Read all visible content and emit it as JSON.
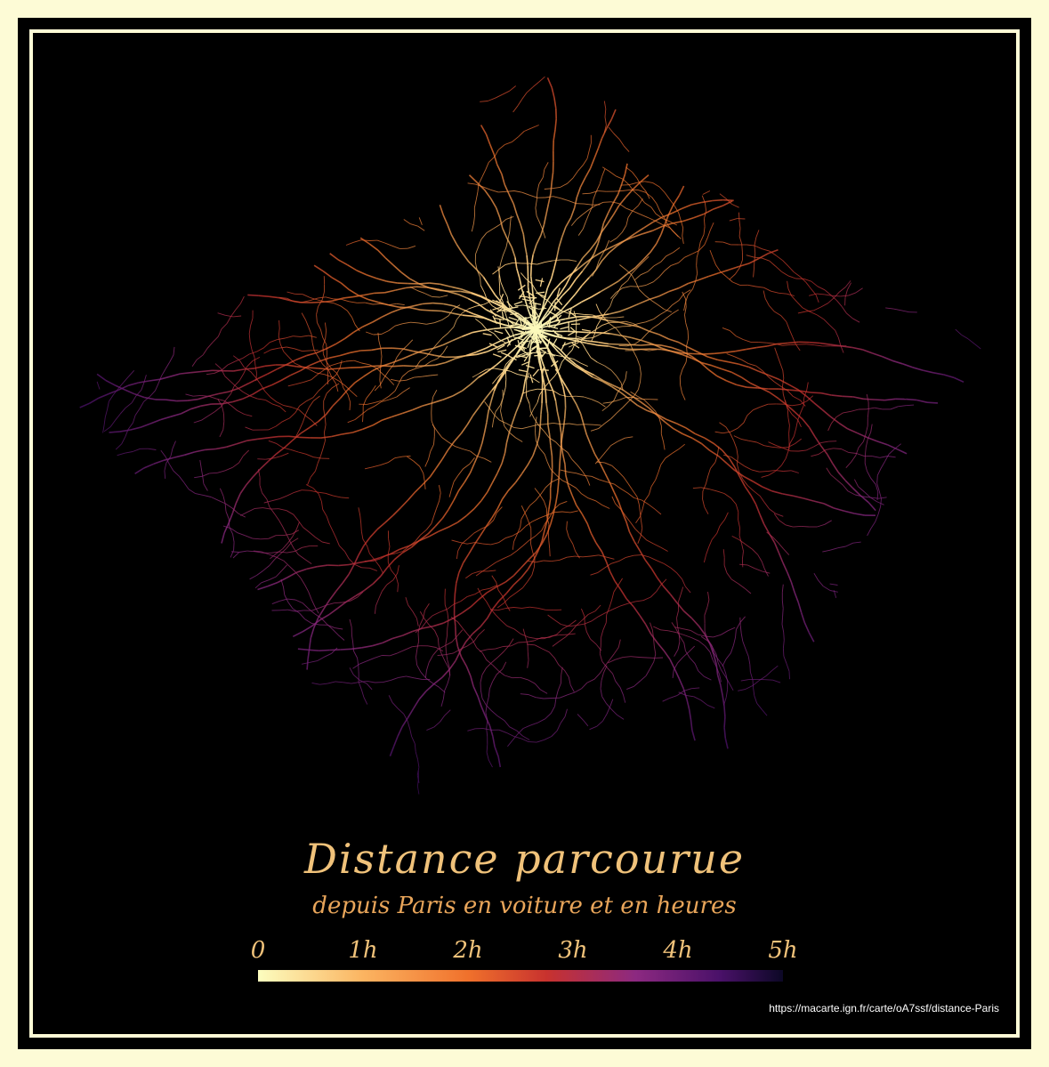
{
  "title": "Distance parcourue",
  "subtitle": "depuis Paris en voiture et en heures",
  "legend": {
    "ticks": [
      "0",
      "1h",
      "2h",
      "3h",
      "4h",
      "5h"
    ],
    "min_hours": 0,
    "max_hours": 5,
    "colors": [
      "#fcfdbf",
      "#fbb461",
      "#f0712c",
      "#c8322e",
      "#8c2981",
      "#4a1169",
      "#0c0826"
    ]
  },
  "source_url": "https://macarte.ign.fr/carte/oA7ssf/distance-Paris",
  "colors": {
    "background": "#000000",
    "frame": "#fdfbd6",
    "title": "#f0c27a"
  }
}
